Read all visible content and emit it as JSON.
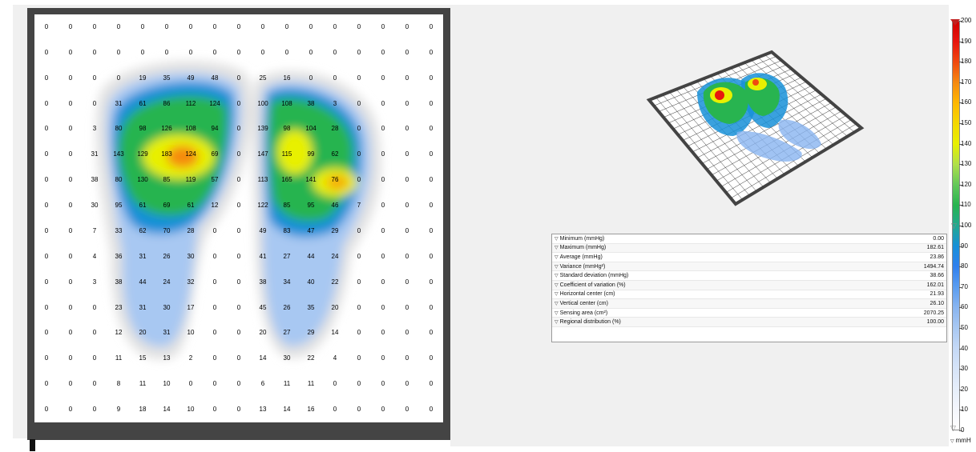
{
  "grid": {
    "rows": [
      [
        "0",
        "0",
        "0",
        "0",
        "0",
        "0",
        "0",
        "0",
        "0",
        "0",
        "0",
        "0",
        "0",
        "0",
        "0",
        "0",
        "0"
      ],
      [
        "0",
        "0",
        "0",
        "0",
        "0",
        "0",
        "0",
        "0",
        "0",
        "0",
        "0",
        "0",
        "0",
        "0",
        "0",
        "0",
        "0"
      ],
      [
        "0",
        "0",
        "0",
        "0",
        "19",
        "35",
        "49",
        "48",
        "0",
        "25",
        "16",
        "0",
        "0",
        "0",
        "0",
        "0",
        "0"
      ],
      [
        "0",
        "0",
        "0",
        "31",
        "61",
        "86",
        "112",
        "124",
        "0",
        "100",
        "108",
        "38",
        "3",
        "0",
        "0",
        "0",
        "0"
      ],
      [
        "0",
        "0",
        "3",
        "80",
        "98",
        "126",
        "108",
        "94",
        "0",
        "139",
        "98",
        "104",
        "28",
        "0",
        "0",
        "0",
        "0"
      ],
      [
        "0",
        "0",
        "31",
        "143",
        "129",
        "183",
        "124",
        "69",
        "0",
        "147",
        "115",
        "99",
        "62",
        "0",
        "0",
        "0",
        "0"
      ],
      [
        "0",
        "0",
        "38",
        "80",
        "130",
        "85",
        "119",
        "57",
        "0",
        "113",
        "165",
        "141",
        "76",
        "0",
        "0",
        "0",
        "0"
      ],
      [
        "0",
        "0",
        "30",
        "95",
        "61",
        "69",
        "61",
        "12",
        "0",
        "122",
        "85",
        "95",
        "46",
        "7",
        "0",
        "0",
        "0"
      ],
      [
        "0",
        "0",
        "7",
        "33",
        "62",
        "70",
        "28",
        "0",
        "0",
        "49",
        "83",
        "47",
        "29",
        "0",
        "0",
        "0",
        "0"
      ],
      [
        "0",
        "0",
        "4",
        "36",
        "31",
        "26",
        "30",
        "0",
        "0",
        "41",
        "27",
        "44",
        "24",
        "0",
        "0",
        "0",
        "0"
      ],
      [
        "0",
        "0",
        "3",
        "38",
        "44",
        "24",
        "32",
        "0",
        "0",
        "38",
        "34",
        "40",
        "22",
        "0",
        "0",
        "0",
        "0"
      ],
      [
        "0",
        "0",
        "0",
        "23",
        "31",
        "30",
        "17",
        "0",
        "0",
        "45",
        "26",
        "35",
        "20",
        "0",
        "0",
        "0",
        "0"
      ],
      [
        "0",
        "0",
        "0",
        "12",
        "20",
        "31",
        "10",
        "0",
        "0",
        "20",
        "27",
        "29",
        "14",
        "0",
        "0",
        "0",
        "0"
      ],
      [
        "0",
        "0",
        "0",
        "11",
        "15",
        "13",
        "2",
        "0",
        "0",
        "14",
        "30",
        "22",
        "4",
        "0",
        "0",
        "0",
        "0"
      ],
      [
        "0",
        "0",
        "0",
        "8",
        "11",
        "10",
        "0",
        "0",
        "0",
        "6",
        "11",
        "11",
        "0",
        "0",
        "0",
        "0",
        "0"
      ],
      [
        "0",
        "0",
        "0",
        "9",
        "18",
        "14",
        "10",
        "0",
        "0",
        "13",
        "14",
        "16",
        "0",
        "0",
        "0",
        "0",
        "0"
      ]
    ]
  },
  "stats": [
    {
      "label": "Minimum (mmHg)",
      "value": "0.00"
    },
    {
      "label": "Maximum (mmHg)",
      "value": "182.61"
    },
    {
      "label": "Average (mmHg)",
      "value": "23.86"
    },
    {
      "label": "Variance (mmHg²)",
      "value": "1494.74"
    },
    {
      "label": "Standard deviation (mmHg)",
      "value": "38.66"
    },
    {
      "label": "Coefficient of variation (%)",
      "value": "162.01"
    },
    {
      "label": "Horizontal center (cm)",
      "value": "21.93"
    },
    {
      "label": "Vertical center (cm)",
      "value": "26.10"
    },
    {
      "label": "Sensing area (cm²)",
      "value": "2070.25"
    },
    {
      "label": "Regional distribution (%)",
      "value": "100.00"
    }
  ],
  "colorbar": {
    "ticks": [
      "200",
      "190",
      "180",
      "170",
      "160",
      "150",
      "140",
      "130",
      "120",
      "110",
      "100",
      "90",
      "80",
      "70",
      "60",
      "50",
      "40",
      "30",
      "20",
      "10",
      "0"
    ],
    "unit": "mmH",
    "min": 0,
    "max": 200
  },
  "icons": {
    "row_toggle": "triangle-down-icon",
    "slider": "triangle-handle-icon"
  },
  "colors": {
    "frame": "#444444",
    "panel_bg": "#f0f0f0",
    "high": "#d10000",
    "mid": "#f4d800",
    "low": "#1890d8"
  }
}
